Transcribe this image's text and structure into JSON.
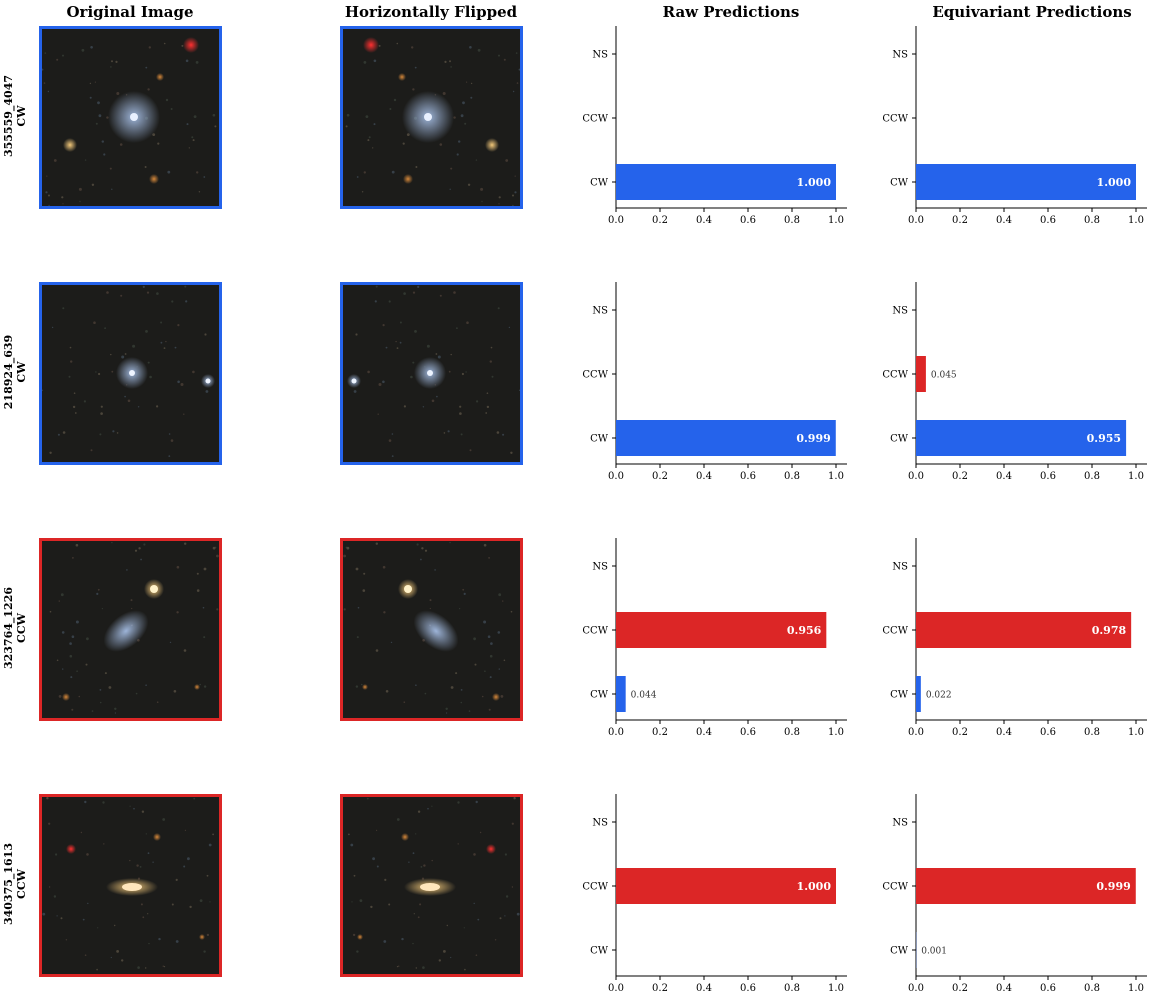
{
  "colors": {
    "cw": "#2563eb",
    "ccw": "#dc2626"
  },
  "column_titles": [
    "Original Image",
    "Horizontally Flipped",
    "Raw Predictions",
    "Equivariant Predictions"
  ],
  "rows": [
    {
      "id": "355559_4047",
      "true_label": "CW",
      "border_color": "#2563eb"
    },
    {
      "id": "218924_639",
      "true_label": "CW",
      "border_color": "#2563eb"
    },
    {
      "id": "323764_1226",
      "true_label": "CCW",
      "border_color": "#dc2626"
    },
    {
      "id": "340375_1613",
      "true_label": "CCW",
      "border_color": "#dc2626"
    }
  ],
  "chart_data": [
    {
      "type": "bar",
      "orientation": "horizontal",
      "row": 0,
      "panel": "Raw Predictions",
      "categories": [
        "CW",
        "CCW",
        "NS"
      ],
      "values": [
        1.0,
        0,
        0
      ],
      "value_labels": [
        "1.000",
        "",
        ""
      ],
      "xlim": [
        0,
        1.05
      ],
      "xticks": [
        "0.0",
        "0.2",
        "0.4",
        "0.6",
        "0.8",
        "1.0"
      ]
    },
    {
      "type": "bar",
      "orientation": "horizontal",
      "row": 0,
      "panel": "Equivariant Predictions",
      "categories": [
        "CW",
        "CCW",
        "NS"
      ],
      "values": [
        1.0,
        0,
        0
      ],
      "value_labels": [
        "1.000",
        "",
        ""
      ],
      "xlim": [
        0,
        1.05
      ],
      "xticks": [
        "0.0",
        "0.2",
        "0.4",
        "0.6",
        "0.8",
        "1.0"
      ]
    },
    {
      "type": "bar",
      "orientation": "horizontal",
      "row": 1,
      "panel": "Raw Predictions",
      "categories": [
        "CW",
        "CCW",
        "NS"
      ],
      "values": [
        0.999,
        0,
        0
      ],
      "value_labels": [
        "0.999",
        "",
        ""
      ],
      "xlim": [
        0,
        1.05
      ],
      "xticks": [
        "0.0",
        "0.2",
        "0.4",
        "0.6",
        "0.8",
        "1.0"
      ]
    },
    {
      "type": "bar",
      "orientation": "horizontal",
      "row": 1,
      "panel": "Equivariant Predictions",
      "categories": [
        "CW",
        "CCW",
        "NS"
      ],
      "values": [
        0.955,
        0.045,
        0
      ],
      "value_labels": [
        "0.955",
        "0.045",
        ""
      ],
      "xlim": [
        0,
        1.05
      ],
      "xticks": [
        "0.0",
        "0.2",
        "0.4",
        "0.6",
        "0.8",
        "1.0"
      ]
    },
    {
      "type": "bar",
      "orientation": "horizontal",
      "row": 2,
      "panel": "Raw Predictions",
      "categories": [
        "CW",
        "CCW",
        "NS"
      ],
      "values": [
        0.044,
        0.956,
        0
      ],
      "value_labels": [
        "0.044",
        "0.956",
        ""
      ],
      "xlim": [
        0,
        1.05
      ],
      "xticks": [
        "0.0",
        "0.2",
        "0.4",
        "0.6",
        "0.8",
        "1.0"
      ]
    },
    {
      "type": "bar",
      "orientation": "horizontal",
      "row": 2,
      "panel": "Equivariant Predictions",
      "categories": [
        "CW",
        "CCW",
        "NS"
      ],
      "values": [
        0.022,
        0.978,
        0
      ],
      "value_labels": [
        "0.022",
        "0.978",
        ""
      ],
      "xlim": [
        0,
        1.05
      ],
      "xticks": [
        "0.0",
        "0.2",
        "0.4",
        "0.6",
        "0.8",
        "1.0"
      ]
    },
    {
      "type": "bar",
      "orientation": "horizontal",
      "row": 3,
      "panel": "Raw Predictions",
      "categories": [
        "CW",
        "CCW",
        "NS"
      ],
      "values": [
        0,
        1.0,
        0
      ],
      "value_labels": [
        "",
        "1.000",
        ""
      ],
      "xlim": [
        0,
        1.05
      ],
      "xticks": [
        "0.0",
        "0.2",
        "0.4",
        "0.6",
        "0.8",
        "1.0"
      ]
    },
    {
      "type": "bar",
      "orientation": "horizontal",
      "row": 3,
      "panel": "Equivariant Predictions",
      "categories": [
        "CW",
        "CCW",
        "NS"
      ],
      "values": [
        0.001,
        0.999,
        0
      ],
      "value_labels": [
        "0.001",
        "0.999",
        ""
      ],
      "xlim": [
        0,
        1.05
      ],
      "xticks": [
        "0.0",
        "0.2",
        "0.4",
        "0.6",
        "0.8",
        "1.0"
      ]
    }
  ]
}
